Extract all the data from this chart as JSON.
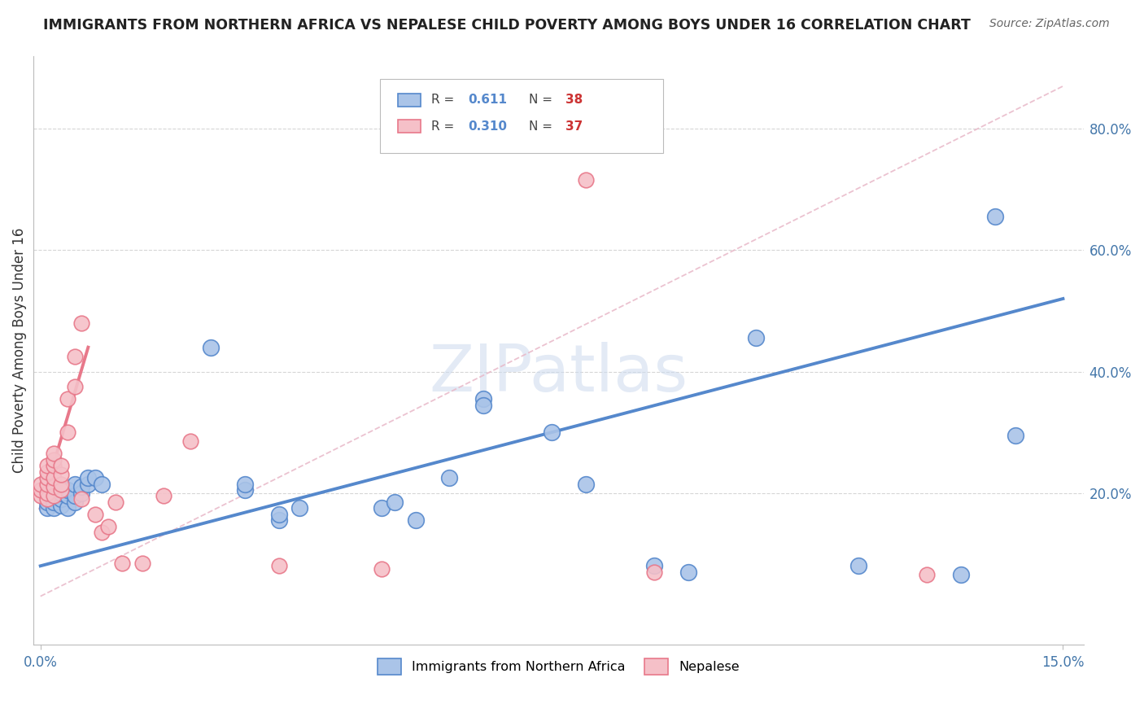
{
  "title": "IMMIGRANTS FROM NORTHERN AFRICA VS NEPALESE CHILD POVERTY AMONG BOYS UNDER 16 CORRELATION CHART",
  "source": "Source: ZipAtlas.com",
  "ylabel": "Child Poverty Among Boys Under 16",
  "xlim": [
    -0.001,
    0.153
  ],
  "ylim": [
    -0.05,
    0.92
  ],
  "xtick_positions": [
    0.0,
    0.15
  ],
  "xtick_labels": [
    "0.0%",
    "15.0%"
  ],
  "ytick_positions": [
    0.2,
    0.4,
    0.6,
    0.8
  ],
  "ytick_labels": [
    "20.0%",
    "40.0%",
    "60.0%",
    "80.0%"
  ],
  "background_color": "#ffffff",
  "grid_color": "#cccccc",
  "watermark": "ZIPatlas",
  "blue_color": "#5588cc",
  "blue_fill": "#aac4e8",
  "pink_color": "#e8788a",
  "pink_fill": "#f5c0c8",
  "blue_scatter": [
    [
      0.001,
      0.175
    ],
    [
      0.001,
      0.185
    ],
    [
      0.002,
      0.175
    ],
    [
      0.002,
      0.185
    ],
    [
      0.002,
      0.195
    ],
    [
      0.003,
      0.18
    ],
    [
      0.003,
      0.19
    ],
    [
      0.003,
      0.2
    ],
    [
      0.004,
      0.175
    ],
    [
      0.004,
      0.195
    ],
    [
      0.004,
      0.205
    ],
    [
      0.005,
      0.185
    ],
    [
      0.005,
      0.195
    ],
    [
      0.005,
      0.215
    ],
    [
      0.006,
      0.2
    ],
    [
      0.006,
      0.21
    ],
    [
      0.007,
      0.215
    ],
    [
      0.007,
      0.225
    ],
    [
      0.008,
      0.225
    ],
    [
      0.009,
      0.215
    ],
    [
      0.025,
      0.44
    ],
    [
      0.03,
      0.205
    ],
    [
      0.03,
      0.215
    ],
    [
      0.035,
      0.155
    ],
    [
      0.035,
      0.165
    ],
    [
      0.038,
      0.175
    ],
    [
      0.05,
      0.175
    ],
    [
      0.052,
      0.185
    ],
    [
      0.055,
      0.155
    ],
    [
      0.06,
      0.225
    ],
    [
      0.065,
      0.355
    ],
    [
      0.065,
      0.345
    ],
    [
      0.075,
      0.3
    ],
    [
      0.08,
      0.215
    ],
    [
      0.09,
      0.08
    ],
    [
      0.095,
      0.07
    ],
    [
      0.105,
      0.455
    ],
    [
      0.12,
      0.08
    ],
    [
      0.135,
      0.065
    ],
    [
      0.14,
      0.655
    ],
    [
      0.143,
      0.295
    ]
  ],
  "pink_scatter": [
    [
      0.0,
      0.195
    ],
    [
      0.0,
      0.205
    ],
    [
      0.0,
      0.215
    ],
    [
      0.001,
      0.19
    ],
    [
      0.001,
      0.2
    ],
    [
      0.001,
      0.215
    ],
    [
      0.001,
      0.225
    ],
    [
      0.001,
      0.235
    ],
    [
      0.001,
      0.245
    ],
    [
      0.002,
      0.195
    ],
    [
      0.002,
      0.21
    ],
    [
      0.002,
      0.225
    ],
    [
      0.002,
      0.245
    ],
    [
      0.002,
      0.255
    ],
    [
      0.002,
      0.265
    ],
    [
      0.003,
      0.205
    ],
    [
      0.003,
      0.215
    ],
    [
      0.003,
      0.23
    ],
    [
      0.003,
      0.245
    ],
    [
      0.004,
      0.3
    ],
    [
      0.004,
      0.355
    ],
    [
      0.005,
      0.375
    ],
    [
      0.005,
      0.425
    ],
    [
      0.006,
      0.48
    ],
    [
      0.006,
      0.19
    ],
    [
      0.008,
      0.165
    ],
    [
      0.009,
      0.135
    ],
    [
      0.01,
      0.145
    ],
    [
      0.011,
      0.185
    ],
    [
      0.012,
      0.085
    ],
    [
      0.015,
      0.085
    ],
    [
      0.018,
      0.195
    ],
    [
      0.022,
      0.285
    ],
    [
      0.035,
      0.08
    ],
    [
      0.05,
      0.075
    ],
    [
      0.08,
      0.715
    ],
    [
      0.09,
      0.07
    ],
    [
      0.13,
      0.065
    ]
  ],
  "blue_line_x": [
    0.0,
    0.15
  ],
  "blue_line_y": [
    0.08,
    0.52
  ],
  "pink_line_x": [
    0.0,
    0.007
  ],
  "pink_line_y": [
    0.175,
    0.44
  ],
  "dashed_line_x": [
    0.0,
    0.15
  ],
  "dashed_line_y": [
    0.03,
    0.87
  ],
  "dashed_color": "#e8b8c8"
}
